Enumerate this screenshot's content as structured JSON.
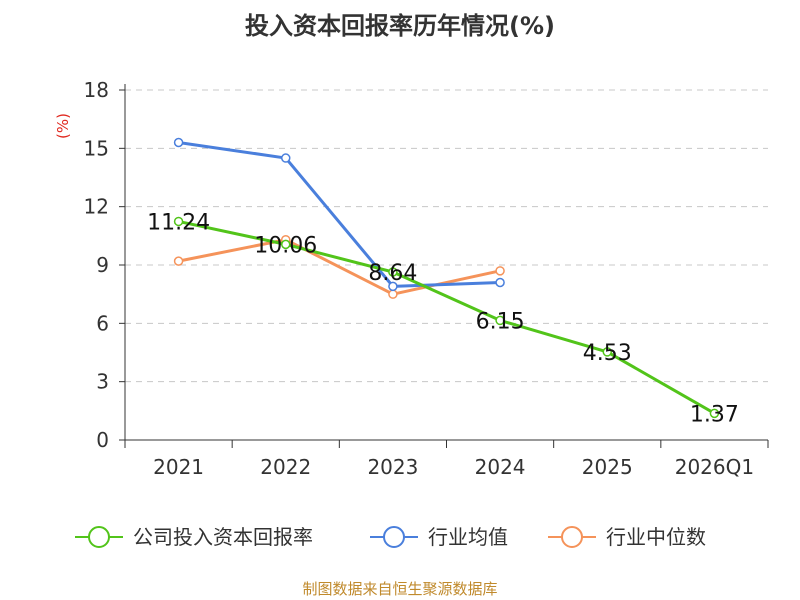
{
  "title": "投入资本回报率历年情况(%)",
  "source": "制图数据来自恒生聚源数据库",
  "chart_data": {
    "type": "line",
    "title": "投入资本回报率历年情况(%)",
    "ylabel": "(%)",
    "xlabel": "",
    "categories": [
      "2021",
      "2022",
      "2023",
      "2024",
      "2025",
      "2026Q1"
    ],
    "ylim": [
      0,
      18
    ],
    "yticks": [
      0,
      3,
      6,
      9,
      12,
      15,
      18
    ],
    "grid": true,
    "legend_position": "bottom",
    "series": [
      {
        "name": "公司投入资本回报率",
        "color": "#52c41a",
        "values": [
          11.24,
          10.06,
          8.64,
          6.15,
          4.53,
          1.37
        ],
        "labels": [
          "11.24",
          "10.06",
          "8.64",
          "6.15",
          "4.53",
          "1.37"
        ]
      },
      {
        "name": "行业均值",
        "color": "#4a7fdc",
        "values": [
          15.3,
          14.5,
          7.9,
          8.1,
          null,
          null
        ]
      },
      {
        "name": "行业中位数",
        "color": "#f5935a",
        "values": [
          9.2,
          10.3,
          7.5,
          8.7,
          null,
          null
        ]
      }
    ]
  }
}
